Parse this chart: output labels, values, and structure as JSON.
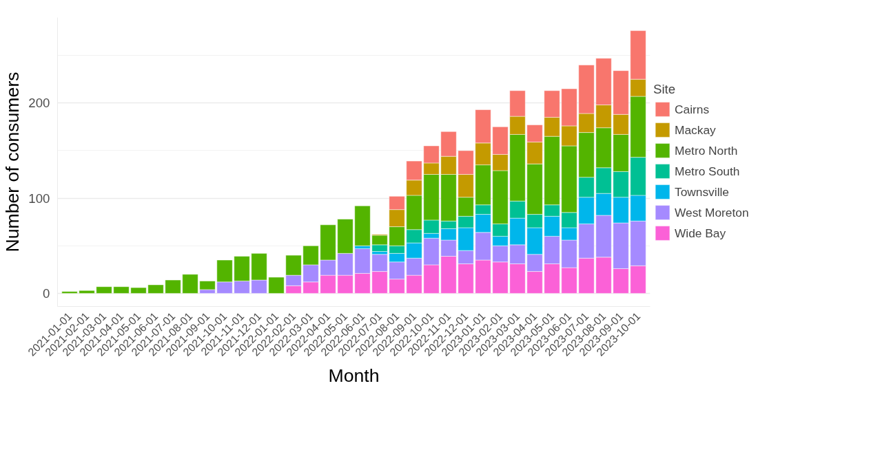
{
  "chart_data": {
    "type": "bar",
    "stacked": true,
    "xlabel": "Month",
    "ylabel": "Number of consumers",
    "legend_title": "Site",
    "legend": "right",
    "grid": "y",
    "categories": [
      "2021-01-01",
      "2021-02-01",
      "2021-03-01",
      "2021-04-01",
      "2021-05-01",
      "2021-06-01",
      "2021-07-01",
      "2021-08-01",
      "2021-09-01",
      "2021-10-01",
      "2021-11-01",
      "2021-12-01",
      "2022-01-01",
      "2022-02-01",
      "2022-03-01",
      "2022-04-01",
      "2022-05-01",
      "2022-06-01",
      "2022-07-01",
      "2022-08-01",
      "2022-09-01",
      "2022-10-01",
      "2022-11-01",
      "2022-12-01",
      "2023-01-01",
      "2023-02-01",
      "2023-03-01",
      "2023-04-01",
      "2023-05-01",
      "2023-06-01",
      "2023-07-01",
      "2023-08-01",
      "2023-09-01",
      "2023-10-01"
    ],
    "ylim": [
      -13.8,
      289.8
    ],
    "yticks": [
      0,
      100,
      200
    ],
    "series": [
      {
        "name": "Wide Bay",
        "color": "#fb61d7",
        "values": [
          0,
          0,
          0,
          0,
          0,
          0,
          0,
          0,
          0,
          0,
          0,
          0,
          0,
          8,
          12,
          19,
          19,
          21,
          23,
          15,
          19,
          30,
          39,
          31,
          35,
          33,
          31,
          23,
          31,
          27,
          37,
          38,
          26,
          29
        ]
      },
      {
        "name": "West Moreton",
        "color": "#a58aff",
        "values": [
          0,
          0,
          0,
          0,
          0,
          0,
          0,
          0,
          4,
          12,
          13,
          14,
          0,
          11,
          18,
          16,
          23,
          26,
          18,
          18,
          18,
          28,
          17,
          14,
          29,
          17,
          20,
          18,
          29,
          29,
          36,
          44,
          48,
          47
        ]
      },
      {
        "name": "Townsville",
        "color": "#00b6eb",
        "values": [
          0,
          0,
          0,
          0,
          0,
          0,
          0,
          0,
          0,
          0,
          0,
          0,
          0,
          0,
          0,
          0,
          0,
          3,
          3,
          9,
          16,
          5,
          12,
          24,
          19,
          10,
          28,
          28,
          21,
          13,
          28,
          23,
          27,
          27
        ]
      },
      {
        "name": "Metro South",
        "color": "#00c094",
        "values": [
          0,
          0,
          0,
          0,
          0,
          0,
          0,
          0,
          0,
          0,
          0,
          0,
          0,
          0,
          0,
          0,
          0,
          0,
          7,
          8,
          14,
          14,
          8,
          12,
          10,
          13,
          18,
          14,
          12,
          16,
          21,
          27,
          27,
          40
        ]
      },
      {
        "name": "Metro North",
        "color": "#53b400",
        "values": [
          2,
          3,
          7,
          7,
          6,
          9,
          14,
          20,
          9,
          23,
          26,
          28,
          17,
          21,
          20,
          37,
          36,
          42,
          10,
          20,
          36,
          48,
          49,
          20,
          42,
          56,
          70,
          53,
          72,
          70,
          47,
          42,
          39,
          64
        ]
      },
      {
        "name": "Mackay",
        "color": "#c49a00",
        "values": [
          0,
          0,
          0,
          0,
          0,
          0,
          0,
          0,
          0,
          0,
          0,
          0,
          0,
          0,
          0,
          0,
          0,
          0,
          1,
          18,
          16,
          12,
          19,
          24,
          23,
          17,
          19,
          23,
          20,
          21,
          20,
          24,
          21,
          18
        ]
      },
      {
        "name": "Cairns",
        "color": "#f8766d",
        "values": [
          0,
          0,
          0,
          0,
          0,
          0,
          0,
          0,
          0,
          0,
          0,
          0,
          0,
          0,
          0,
          0,
          0,
          0,
          0,
          14,
          20,
          18,
          26,
          25,
          35,
          29,
          27,
          18,
          28,
          39,
          51,
          49,
          46,
          51
        ]
      }
    ]
  }
}
